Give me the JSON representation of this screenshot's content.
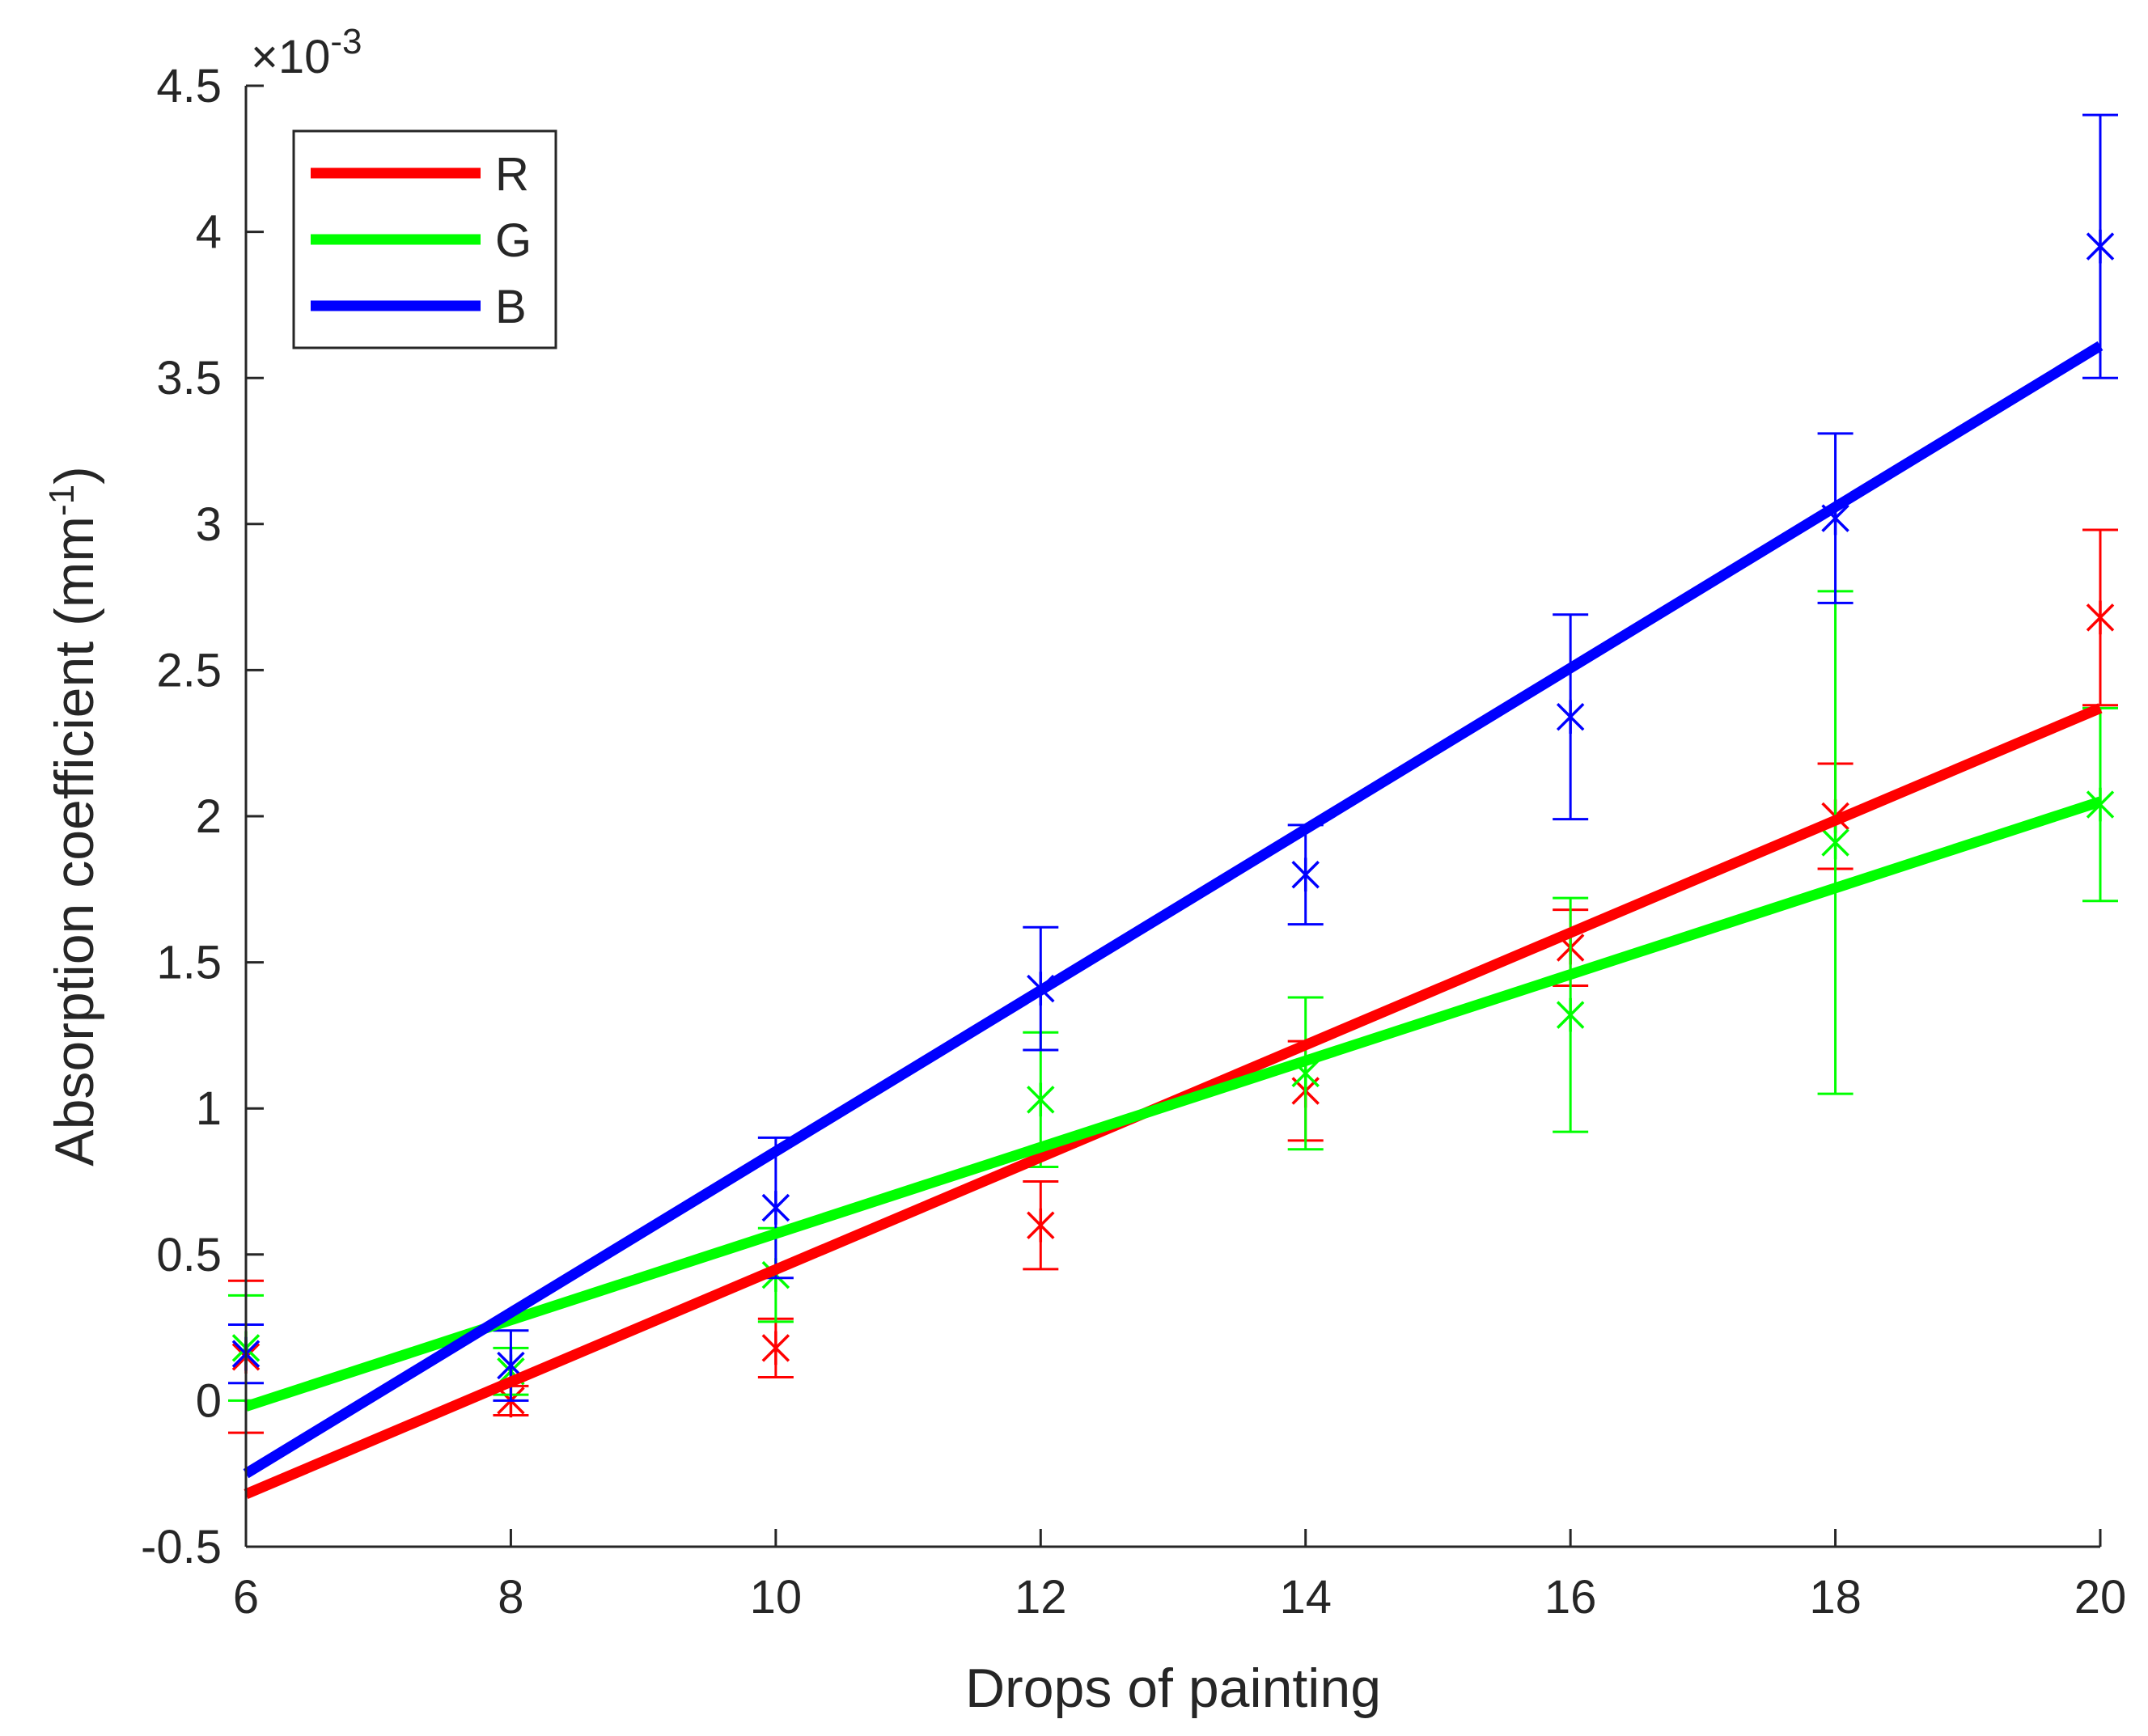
{
  "chart_data": {
    "type": "scatter",
    "title": "",
    "xlabel": "Drops of painting",
    "ylabel": "Absorption coefficient (mm",
    "ylabel_sup": "-1",
    "ylabel_end": ")",
    "exponent_label": "×10",
    "exponent_sup": "-3",
    "xlim": [
      6,
      20
    ],
    "ylim": [
      -0.5,
      4.5
    ],
    "xticks": [
      "6",
      "8",
      "10",
      "12",
      "14",
      "16",
      "18",
      "20"
    ],
    "yticks": [
      "-0.5",
      "0",
      "0.5",
      "1",
      "1.5",
      "2",
      "2.5",
      "3",
      "3.5",
      "4",
      "4.5"
    ],
    "legend_position": "top-left",
    "x": [
      6,
      8,
      10,
      12,
      14,
      16,
      18,
      20
    ],
    "series": [
      {
        "name": "R",
        "color": "#ff0000",
        "values": [
          0.15,
          0.0,
          0.18,
          0.6,
          1.06,
          1.55,
          2.0,
          2.68
        ],
        "err_low": [
          0.26,
          0.05,
          0.1,
          0.15,
          0.17,
          0.13,
          0.18,
          0.3
        ],
        "err_high": [
          0.26,
          0.05,
          0.1,
          0.15,
          0.17,
          0.13,
          0.18,
          0.3
        ],
        "fit": [
          -0.32,
          2.37
        ]
      },
      {
        "name": "G",
        "color": "#00ff00",
        "values": [
          0.18,
          0.1,
          0.43,
          1.03,
          1.12,
          1.32,
          1.91,
          2.04
        ],
        "err_low": [
          0.18,
          0.08,
          0.16,
          0.23,
          0.26,
          0.4,
          0.86,
          0.33
        ],
        "err_high": [
          0.18,
          0.08,
          0.16,
          0.23,
          0.26,
          0.4,
          0.86,
          0.33
        ],
        "fit": [
          -0.02,
          2.05
        ]
      },
      {
        "name": "B",
        "color": "#0000ff",
        "values": [
          0.16,
          0.12,
          0.66,
          1.41,
          1.8,
          2.34,
          3.02,
          3.95
        ],
        "err_low": [
          0.1,
          0.12,
          0.24,
          0.21,
          0.17,
          0.35,
          0.29,
          0.45
        ],
        "err_high": [
          0.1,
          0.12,
          0.24,
          0.21,
          0.17,
          0.35,
          0.29,
          0.45
        ],
        "fit": [
          -0.25,
          3.61
        ]
      }
    ]
  }
}
